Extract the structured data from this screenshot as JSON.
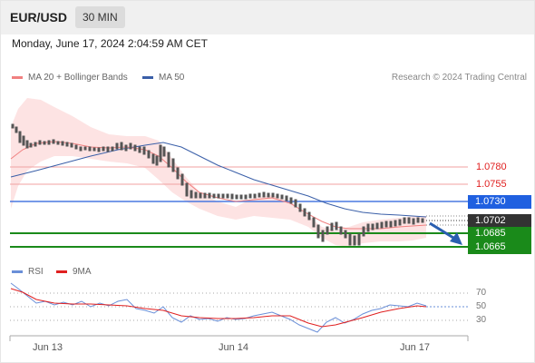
{
  "header": {
    "pair": "EUR/USD",
    "timeframe": "30 MIN"
  },
  "date_line": "Monday, June 17, 2024 2:04:59 AM CET",
  "legend": {
    "ma20": "MA 20 + Bollinger Bands",
    "ma50": "MA 50",
    "credit": "Research © 2024 Trading Central",
    "ma20_color": "#f08080",
    "ma50_color": "#3a5fa8"
  },
  "levels": {
    "r2": "1.0780",
    "r1": "1.0755",
    "pivot": "1.0730",
    "current": "1.0702",
    "s1": "1.0685",
    "s2": "1.0665"
  },
  "level_colors": {
    "resistance": "#e02020",
    "pivot": "#2060e0",
    "current": "#333333",
    "support": "#1a8a1a"
  },
  "rsi": {
    "legend_rsi": "RSI",
    "legend_ma": "9MA",
    "levels": [
      "70",
      "50",
      "30"
    ],
    "rsi_color": "#6a8fd8",
    "ma_color": "#e02020"
  },
  "x_axis": [
    "Jun 13",
    "Jun 14",
    "Jun 17"
  ],
  "chart_data": {
    "type": "candlestick",
    "price_levels": [
      1.078,
      1.0755,
      1.073,
      1.0702,
      1.0685,
      1.0665
    ],
    "rsi_levels": [
      70,
      50,
      30
    ],
    "trend": "down",
    "target": 1.0665
  }
}
